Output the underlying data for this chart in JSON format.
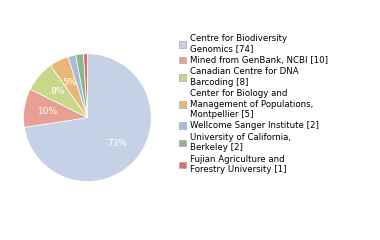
{
  "labels": [
    "Centre for Biodiversity\nGenomics [74]",
    "Mined from GenBank, NCBI [10]",
    "Canadian Centre for DNA\nBarcoding [8]",
    "Center for Biology and\nManagement of Populations,\nMontpellier [5]",
    "Wellcome Sanger Institute [2]",
    "University of California,\nBerkeley [2]",
    "Fujian Agriculture and\nForestry University [1]"
  ],
  "values": [
    74,
    10,
    8,
    5,
    2,
    2,
    1
  ],
  "colors": [
    "#c5d2e5",
    "#e89f94",
    "#c8d88a",
    "#e8b87a",
    "#a8bcd4",
    "#8ab88a",
    "#d87070"
  ],
  "text_color": "white",
  "fontsize": 6.5,
  "legend_fontsize": 6.2
}
